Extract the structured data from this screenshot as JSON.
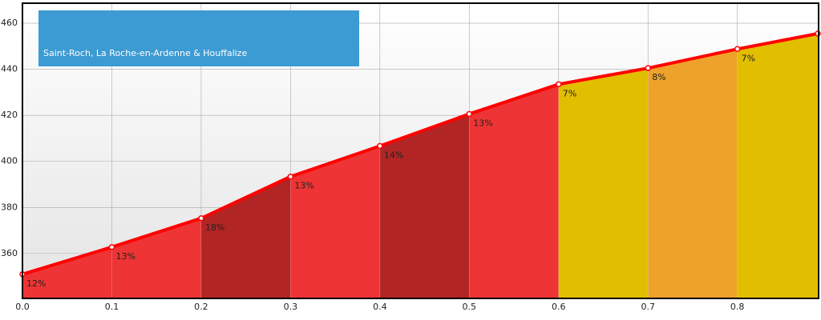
{
  "chart_data": {
    "type": "area",
    "legend_label": "Saint-Roch, La Roche-en-Ardenne & Houffalize",
    "legend_color": "#3d9bd3",
    "x": [
      0,
      0.1,
      0.2,
      0.3,
      0.4,
      0.5,
      0.6,
      0.7,
      0.8,
      0.89
    ],
    "values": [
      351,
      362.8,
      375.3,
      393.4,
      406.7,
      420.6,
      433.5,
      440.5,
      448.8,
      455.5
    ],
    "line_color": "#ff0000",
    "grade_labels": [
      "12%",
      "13%",
      "18%",
      "13%",
      "14%",
      "13%",
      "7%",
      "8%",
      "7%"
    ],
    "segment_colors": [
      "#ee3434",
      "#ee3434",
      "#b22525",
      "#ee3434",
      "#b22525",
      "#ee3434",
      "#e2be00",
      "#eea229",
      "#e2be00"
    ],
    "xlim": [
      0,
      0.89
    ],
    "ylim": [
      340.5,
      468.7
    ],
    "xticks": [
      {
        "value": 0,
        "label": "0.0"
      },
      0.1,
      0.2,
      0.3,
      0.4,
      0.5,
      0.6,
      0.7,
      0.8
    ],
    "yticks": [
      360,
      380,
      400,
      420,
      440,
      460
    ],
    "grid": true
  }
}
